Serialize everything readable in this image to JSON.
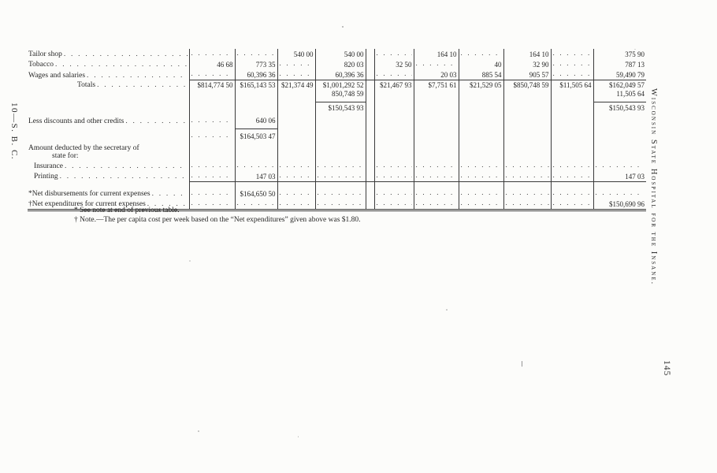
{
  "page": {
    "left_margin_text": "10—S. B. C.",
    "right_margin_text": "Wisconsin State Hospital for the Insane.",
    "page_number": "145"
  },
  "footnotes": [
    "* See note at end of previous table.",
    "† Note.—The per capita cost per week based on the “Net expenditures” given above was $1.80."
  ],
  "table": {
    "cell_token_legend": "'.' = dotted leader fill, '' = blank cell",
    "rows": [
      {
        "label": "Tailor shop",
        "leader": true,
        "cells": [
          ".",
          ".",
          "540 00",
          "540 00",
          ".",
          "164 10",
          ".",
          "164 10",
          ".",
          "375 90"
        ]
      },
      {
        "label": "Tobacco",
        "leader": true,
        "cells": [
          "46 68",
          "773 35",
          ".",
          "820 03",
          "32 50",
          ".",
          "40",
          "32 90",
          ".",
          "787 13"
        ]
      },
      {
        "label": "Wages and salaries",
        "leader": true,
        "cells": [
          ".",
          "60,396 36",
          ".",
          "60,396 36",
          ".",
          "20 03",
          "885 54",
          "905 57",
          ".",
          "59,490 79"
        ]
      },
      {
        "label": "Totals",
        "leader": true,
        "indent": 2,
        "cls": "toprule",
        "cells": [
          "$814,774 50",
          "$165,143 53",
          "$21,374 49",
          "$1,001,292 52",
          "$21,467 93",
          "$7,751 61",
          "$21,529 05",
          "$850,748 59",
          "$11,505 64",
          "$162,049 57"
        ]
      },
      {
        "label": "",
        "cls": "pb4",
        "rule_below": [
          3,
          9
        ],
        "cells": [
          "",
          "",
          "",
          "850,748 59",
          "",
          "",
          "",
          "",
          "",
          "11,505 64"
        ]
      },
      {
        "label": "",
        "cls": "gap2",
        "cells": [
          "",
          "",
          "",
          "$150,543 93",
          "",
          "",
          "",
          "",
          "",
          "$150,543 93"
        ]
      },
      {
        "label": "Less discounts and other credits",
        "leader": true,
        "cls": "gap4 pb4",
        "rule_below": [
          1
        ],
        "cells": [
          ".",
          "640 06",
          "",
          "",
          "",
          "",
          "",
          "",
          "",
          ""
        ]
      },
      {
        "label": "",
        "cls": "gap2",
        "cells": [
          ".",
          "$164,503 47",
          "",
          "",
          "",
          "",
          "",
          "",
          "",
          ""
        ]
      },
      {
        "label": "Amount deducted by the secretary of",
        "label2": "state for:",
        "cls": "gap4",
        "cells": [
          "",
          "",
          "",
          "",
          "",
          "",
          "",
          "",
          "",
          ""
        ]
      },
      {
        "label": "Insurance",
        "leader": true,
        "indent": 1,
        "cells": [
          ".",
          ".",
          ".",
          ".",
          ".",
          ".",
          ".",
          ".",
          ".",
          "."
        ]
      },
      {
        "label": "Printing",
        "leader": true,
        "indent": 1,
        "cells": [
          ".",
          "147 03",
          ".",
          ".",
          ".",
          ".",
          ".",
          ".",
          ".",
          "147 03"
        ]
      },
      {
        "label": "*Net disbursements for current expenses",
        "leader": true,
        "cls": "toprule gap",
        "cells": [
          ".",
          "$164,650 50",
          ".",
          ".",
          ".",
          ".",
          ".",
          ".",
          ".",
          "."
        ]
      },
      {
        "label": "†Net expenditures for current expenses",
        "leader": true,
        "cls": "last",
        "cells": [
          ".",
          ".",
          ".",
          ".",
          ".",
          ".",
          ".",
          ".",
          ".",
          "$150,690 96"
        ]
      }
    ]
  }
}
